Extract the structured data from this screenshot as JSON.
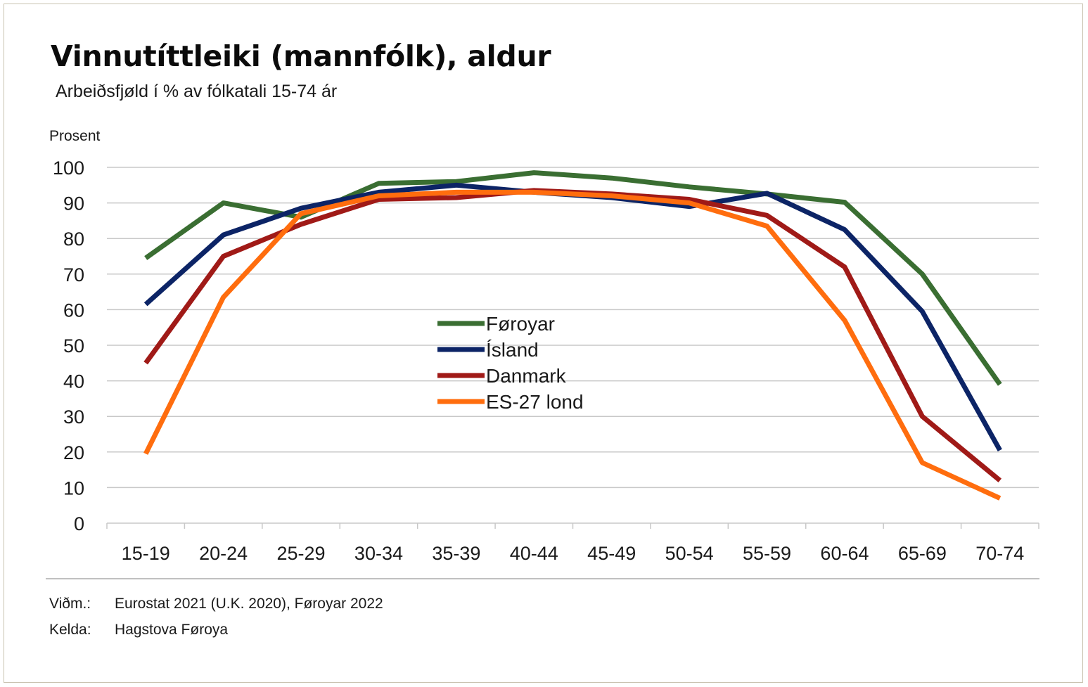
{
  "chart_data": {
    "type": "line",
    "title": "Vinnutíttleiki (mannfólk), aldur",
    "subtitle": "Arbeiðsfjøld í % av fólkatali 15-74 ár",
    "ylabel": "Prosent",
    "xlabel": "",
    "ylim": [
      0,
      100
    ],
    "yticks": [
      0,
      10,
      20,
      30,
      40,
      50,
      60,
      70,
      80,
      90,
      100
    ],
    "grid": true,
    "legend_position": "center",
    "categories": [
      "15-19",
      "20-24",
      "25-29",
      "30-34",
      "35-39",
      "40-44",
      "45-49",
      "50-54",
      "55-59",
      "60-64",
      "65-69",
      "70-74"
    ],
    "series": [
      {
        "name": "Føroyar",
        "color": "#3a6e32",
        "values": [
          74.5,
          90,
          86,
          95.5,
          96,
          98.5,
          97,
          94.5,
          92.5,
          90.2,
          70,
          39
        ]
      },
      {
        "name": "Ísland",
        "color": "#0c2466",
        "values": [
          61.5,
          81,
          88.5,
          93,
          95,
          93,
          91.5,
          89,
          92.7,
          82.5,
          59.5,
          20.5
        ]
      },
      {
        "name": "Danmark",
        "color": "#a01a17",
        "values": [
          45,
          75,
          84,
          91,
          91.5,
          93.5,
          92.5,
          91,
          86.5,
          72,
          30,
          12
        ]
      },
      {
        "name": "ES-27 lond",
        "color": "#ff6d0e",
        "values": [
          19.5,
          63.5,
          87,
          92,
          93,
          93,
          92,
          90,
          83.5,
          57,
          17,
          7
        ]
      }
    ]
  },
  "footer": {
    "note_label": "Viðm.:",
    "note_text": "Eurostat 2021 (U.K. 2020), Føroyar 2022",
    "source_label": "Kelda:",
    "source_text": "Hagstova Føroya"
  }
}
